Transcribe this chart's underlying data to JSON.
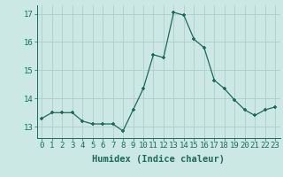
{
  "x": [
    0,
    1,
    2,
    3,
    4,
    5,
    6,
    7,
    8,
    9,
    10,
    11,
    12,
    13,
    14,
    15,
    16,
    17,
    18,
    19,
    20,
    21,
    22,
    23
  ],
  "y": [
    13.3,
    13.5,
    13.5,
    13.5,
    13.2,
    13.1,
    13.1,
    13.1,
    12.85,
    13.6,
    14.35,
    15.55,
    15.45,
    17.05,
    16.95,
    16.1,
    15.8,
    14.65,
    14.35,
    13.95,
    13.6,
    13.4,
    13.6,
    13.7
  ],
  "xlabel": "Humidex (Indice chaleur)",
  "ylim": [
    12.6,
    17.3
  ],
  "xlim": [
    -0.5,
    23.5
  ],
  "yticks": [
    13,
    14,
    15,
    16,
    17
  ],
  "xticks": [
    0,
    1,
    2,
    3,
    4,
    5,
    6,
    7,
    8,
    9,
    10,
    11,
    12,
    13,
    14,
    15,
    16,
    17,
    18,
    19,
    20,
    21,
    22,
    23
  ],
  "line_color": "#1a6b5a",
  "marker_color": "#1a6b5a",
  "bg_color": "#cce8e4",
  "grid_color": "#b0cdc9",
  "xlabel_color": "#1a6b5a",
  "tick_color": "#1a6b5a",
  "xlabel_fontsize": 7.5,
  "tick_fontsize": 6.5
}
